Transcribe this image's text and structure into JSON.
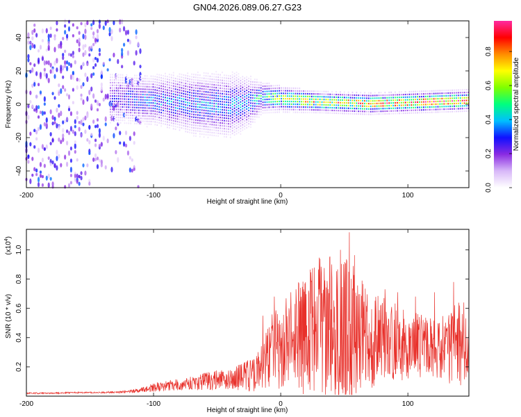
{
  "figure": {
    "title": "GN04.2026.089.06.27.G23"
  },
  "chart_data": [
    {
      "type": "heatmap",
      "name": "spectrogram",
      "xlabel": "Height of straight line (km)",
      "ylabel": "Frequency (Hz)",
      "xlim": [
        -200,
        148
      ],
      "ylim": [
        -50,
        50
      ],
      "xticks": [
        -200,
        -100,
        0,
        100
      ],
      "yticks": [
        -40,
        -20,
        0,
        20,
        40
      ],
      "colorbar": {
        "label": "Normalized spectral amplitude",
        "range": [
          0,
          0.98
        ],
        "ticks": [
          0.0,
          0.2,
          0.4,
          0.6,
          0.8
        ],
        "colormap": [
          "#ffffff",
          "#d8b8f8",
          "#8a2be2",
          "#1010ff",
          "#00bfff",
          "#00ff7f",
          "#7fff00",
          "#ffff00",
          "#ff8c00",
          "#ff0000",
          "#ff2aa0"
        ]
      },
      "scatter_band": {
        "x_start": -200,
        "x_end": -110
      },
      "signal_band": [
        {
          "x": -130,
          "center": 3,
          "halfwidth": 10,
          "amp": 0.25
        },
        {
          "x": -100,
          "center": 2,
          "halfwidth": 10,
          "amp": 0.35
        },
        {
          "x": -70,
          "center": 0,
          "halfwidth": 12,
          "amp": 0.35
        },
        {
          "x": -40,
          "center": -1,
          "halfwidth": 13,
          "amp": 0.35
        },
        {
          "x": -25,
          "center": 1,
          "halfwidth": 10,
          "amp": 0.35
        },
        {
          "x": -15,
          "center": 4,
          "halfwidth": 6,
          "amp": 0.5
        },
        {
          "x": 0,
          "center": 3,
          "halfwidth": 5,
          "amp": 0.6
        },
        {
          "x": 30,
          "center": 1,
          "halfwidth": 4,
          "amp": 0.75
        },
        {
          "x": 70,
          "center": 0,
          "halfwidth": 4,
          "amp": 0.8
        },
        {
          "x": 110,
          "center": 1,
          "halfwidth": 4,
          "amp": 0.85
        },
        {
          "x": 148,
          "center": 2,
          "halfwidth": 4,
          "amp": 0.8
        }
      ]
    },
    {
      "type": "line",
      "name": "snr",
      "xlabel": "Height of straight line (km)",
      "ylabel": "SNR (10 * v/v)",
      "scale_label_base": "(x10",
      "scale_label_exp": "4",
      "scale_label_close": ")",
      "xlim": [
        -200,
        148
      ],
      "ylim": [
        0,
        1.14
      ],
      "xticks": [
        -200,
        -100,
        0,
        100
      ],
      "yticks": [
        0.2,
        0.4,
        0.6,
        0.8,
        1.0
      ],
      "ytick_labels": [
        "0.2",
        "0.4",
        "0.6",
        "0.8",
        "1.0"
      ],
      "color": "#e8302a",
      "x": [
        -200,
        -180,
        -160,
        -140,
        -120,
        -110,
        -100,
        -90,
        -80,
        -70,
        -60,
        -50,
        -40,
        -30,
        -20,
        -15,
        -10,
        0,
        10,
        20,
        30,
        40,
        50,
        55,
        60,
        70,
        80,
        90,
        100,
        110,
        120,
        130,
        140,
        148
      ],
      "y": [
        0.02,
        0.02,
        0.025,
        0.025,
        0.03,
        0.04,
        0.06,
        0.07,
        0.08,
        0.09,
        0.1,
        0.11,
        0.12,
        0.13,
        0.15,
        0.2,
        0.3,
        0.35,
        0.4,
        0.42,
        0.45,
        0.47,
        0.45,
        0.5,
        0.45,
        0.4,
        0.38,
        0.36,
        0.35,
        0.34,
        0.33,
        0.34,
        0.35,
        0.36
      ],
      "noise_amplitude": [
        0.005,
        0.005,
        0.005,
        0.005,
        0.01,
        0.015,
        0.03,
        0.035,
        0.04,
        0.05,
        0.06,
        0.07,
        0.08,
        0.1,
        0.12,
        0.15,
        0.25,
        0.3,
        0.35,
        0.42,
        0.5,
        0.55,
        0.55,
        0.65,
        0.4,
        0.35,
        0.3,
        0.28,
        0.25,
        0.22,
        0.22,
        0.25,
        0.3,
        0.2
      ],
      "spikes": [
        [
          -14,
          0.55
        ],
        [
          -5,
          0.68
        ],
        [
          8,
          0.71
        ],
        [
          18,
          0.73
        ],
        [
          24,
          0.78
        ],
        [
          32,
          0.84
        ],
        [
          40,
          0.9
        ],
        [
          47,
          1.0
        ],
        [
          52,
          0.92
        ],
        [
          54,
          1.12
        ],
        [
          64,
          0.79
        ],
        [
          82,
          0.73
        ],
        [
          92,
          0.71
        ],
        [
          106,
          0.68
        ],
        [
          121,
          0.71
        ],
        [
          136,
          0.78
        ],
        [
          144,
          0.64
        ]
      ],
      "min_excursions": [
        [
          49,
          0.02
        ]
      ]
    }
  ]
}
